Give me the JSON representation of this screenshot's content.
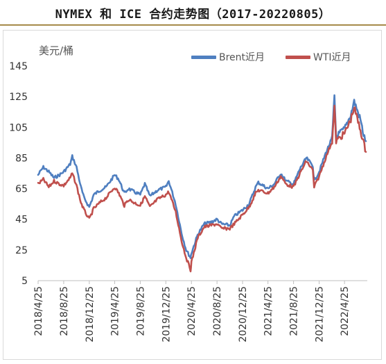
{
  "title": "NYMEX 和 ICE 合约走势图（2017-20220805）",
  "chart_data": {
    "type": "line",
    "unit_label": "美元/桶",
    "ylim": [
      5,
      145
    ],
    "yticks": [
      5,
      25,
      45,
      65,
      85,
      105,
      125,
      145
    ],
    "grid": false,
    "legend_position": "top-right",
    "xticks": [
      "2018/4/25",
      "2018/8/25",
      "2018/12/25",
      "2019/4/25",
      "2019/8/25",
      "2019/12/25",
      "2020/4/25",
      "2020/8/25",
      "2020/12/25",
      "2021/4/25",
      "2021/8/25",
      "2021/12/25",
      "2022/4/25"
    ],
    "colors": {
      "Brent": "#4f7fc0",
      "WTI": "#c0504d"
    },
    "series": [
      {
        "name": "Brent近月",
        "x": [
          "2018/4/25",
          "2018/5/20",
          "2018/6/15",
          "2018/7/10",
          "2018/8/5",
          "2018/8/25",
          "2018/9/25",
          "2018/10/5",
          "2018/10/25",
          "2018/11/15",
          "2018/11/30",
          "2018/12/25",
          "2019/1/15",
          "2019/2/15",
          "2019/3/15",
          "2019/4/25",
          "2019/5/15",
          "2019/6/10",
          "2019/6/30",
          "2019/7/25",
          "2019/8/25",
          "2019/9/16",
          "2019/10/10",
          "2019/11/15",
          "2019/12/25",
          "2020/1/8",
          "2020/2/10",
          "2020/3/9",
          "2020/3/31",
          "2020/4/21",
          "2020/4/25",
          "2020/5/25",
          "2020/6/25",
          "2020/7/25",
          "2020/8/25",
          "2020/9/15",
          "2020/10/25",
          "2020/11/15",
          "2020/12/25",
          "2021/1/25",
          "2021/2/25",
          "2021/3/10",
          "2021/4/25",
          "2021/5/25",
          "2021/6/25",
          "2021/7/20",
          "2021/8/25",
          "2021/9/25",
          "2021/10/25",
          "2021/11/25",
          "2021/12/1",
          "2021/12/25",
          "2022/1/25",
          "2022/2/25",
          "2022/3/8",
          "2022/3/16",
          "2022/4/25",
          "2022/5/25",
          "2022/6/10",
          "2022/7/10",
          "2022/7/25",
          "2022/8/5"
        ],
        "values": [
          74,
          79,
          76,
          72,
          74,
          76,
          81,
          86,
          79,
          66,
          59,
          53,
          61,
          64,
          66,
          74,
          71,
          62,
          65,
          63,
          61,
          68,
          60,
          64,
          66,
          70,
          55,
          36,
          25,
          20,
          23,
          35,
          42,
          43,
          45,
          42,
          41,
          47,
          51,
          55,
          66,
          69,
          65,
          68,
          75,
          70,
          68,
          78,
          85,
          80,
          70,
          76,
          88,
          98,
          125,
          99,
          104,
          113,
          122,
          110,
          100,
          96
        ]
      },
      {
        "name": "WTI近月",
        "x": [
          "2018/4/25",
          "2018/5/20",
          "2018/6/15",
          "2018/7/10",
          "2018/8/5",
          "2018/8/25",
          "2018/9/25",
          "2018/10/5",
          "2018/10/25",
          "2018/11/15",
          "2018/11/30",
          "2018/12/25",
          "2019/1/15",
          "2019/2/15",
          "2019/3/15",
          "2019/4/25",
          "2019/5/15",
          "2019/6/10",
          "2019/6/30",
          "2019/7/25",
          "2019/8/25",
          "2019/9/16",
          "2019/10/10",
          "2019/11/15",
          "2019/12/25",
          "2020/1/8",
          "2020/2/10",
          "2020/3/9",
          "2020/3/31",
          "2020/4/21",
          "2020/4/25",
          "2020/5/25",
          "2020/6/25",
          "2020/7/25",
          "2020/8/25",
          "2020/9/15",
          "2020/10/25",
          "2020/11/15",
          "2020/12/25",
          "2021/1/25",
          "2021/2/25",
          "2021/3/10",
          "2021/4/25",
          "2021/5/25",
          "2021/6/25",
          "2021/7/20",
          "2021/8/25",
          "2021/9/25",
          "2021/10/25",
          "2021/11/25",
          "2021/12/1",
          "2021/12/25",
          "2022/1/25",
          "2022/2/25",
          "2022/3/8",
          "2022/3/16",
          "2022/4/25",
          "2022/5/25",
          "2022/6/10",
          "2022/7/10",
          "2022/7/25",
          "2022/8/5"
        ],
        "values": [
          68,
          71,
          66,
          70,
          68,
          67,
          72,
          75,
          67,
          56,
          51,
          45,
          52,
          56,
          59,
          66,
          62,
          54,
          58,
          56,
          54,
          60,
          53,
          58,
          61,
          63,
          50,
          31,
          20,
          12,
          17,
          33,
          40,
          41,
          42,
          39,
          39,
          42,
          48,
          53,
          62,
          64,
          62,
          66,
          73,
          68,
          66,
          75,
          83,
          77,
          66,
          73,
          85,
          96,
          118,
          96,
          101,
          110,
          118,
          103,
          95,
          89
        ]
      }
    ]
  }
}
